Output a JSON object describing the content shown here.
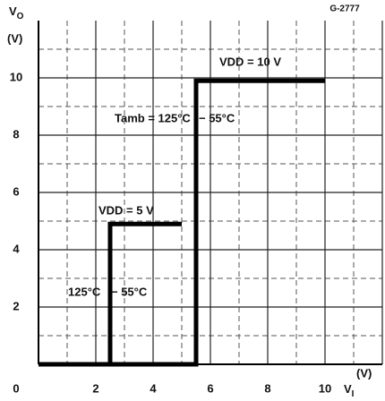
{
  "chart_data": {
    "type": "line",
    "figure_id": "G-2777",
    "y_label": {
      "symbol": "V",
      "subscript": "O",
      "unit": "(V)"
    },
    "x_label": {
      "symbol": "V",
      "subscript": "I",
      "unit": "(V)"
    },
    "xlim": [
      0,
      12
    ],
    "ylim": [
      0,
      12
    ],
    "xticks": [
      0,
      2,
      4,
      6,
      8,
      10
    ],
    "yticks": [
      2,
      4,
      6,
      8,
      10
    ],
    "grid": true,
    "minor_grid": true,
    "series": [
      {
        "name": "VDD = 5 V",
        "color": "#000000",
        "x": [
          0,
          2.5,
          2.5,
          5
        ],
        "values": [
          0,
          0,
          4.9,
          4.9
        ]
      },
      {
        "name": "VDD = 10 V",
        "color": "#000000",
        "x": [
          0,
          5.5,
          5.5,
          10
        ],
        "values": [
          0,
          0,
          9.9,
          9.9
        ]
      }
    ],
    "annotations": [
      "Tamb = 125°C",
      "− 55°C",
      "125°C",
      "− 55°C"
    ]
  }
}
